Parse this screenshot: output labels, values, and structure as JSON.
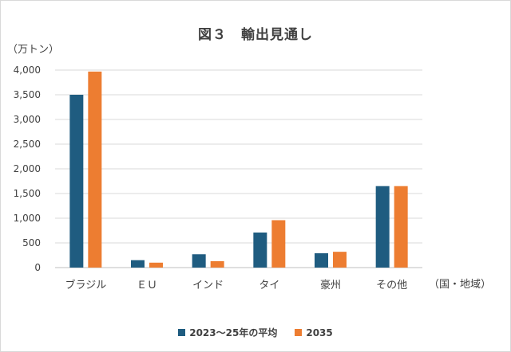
{
  "chart_data": {
    "type": "bar",
    "title": "図３　輸出見通し",
    "ylabel": "（万トン）",
    "xlabel": "（国・地域）",
    "categories": [
      "ブラジル",
      "ＥＵ",
      "インド",
      "タイ",
      "豪州",
      "その他"
    ],
    "series": [
      {
        "name": "2023～25年の平均",
        "color": "#1f5c80",
        "values": [
          3500,
          150,
          270,
          710,
          290,
          1650
        ]
      },
      {
        "name": "2035",
        "color": "#ed7d31",
        "values": [
          3970,
          100,
          130,
          960,
          320,
          1650
        ]
      }
    ],
    "ylim": [
      0,
      4000
    ],
    "yticks": [
      "0",
      "500",
      "1,000",
      "1,500",
      "2,000",
      "2,500",
      "3,000",
      "3,500",
      "4,000"
    ],
    "grid": true,
    "legend": "bottom"
  }
}
